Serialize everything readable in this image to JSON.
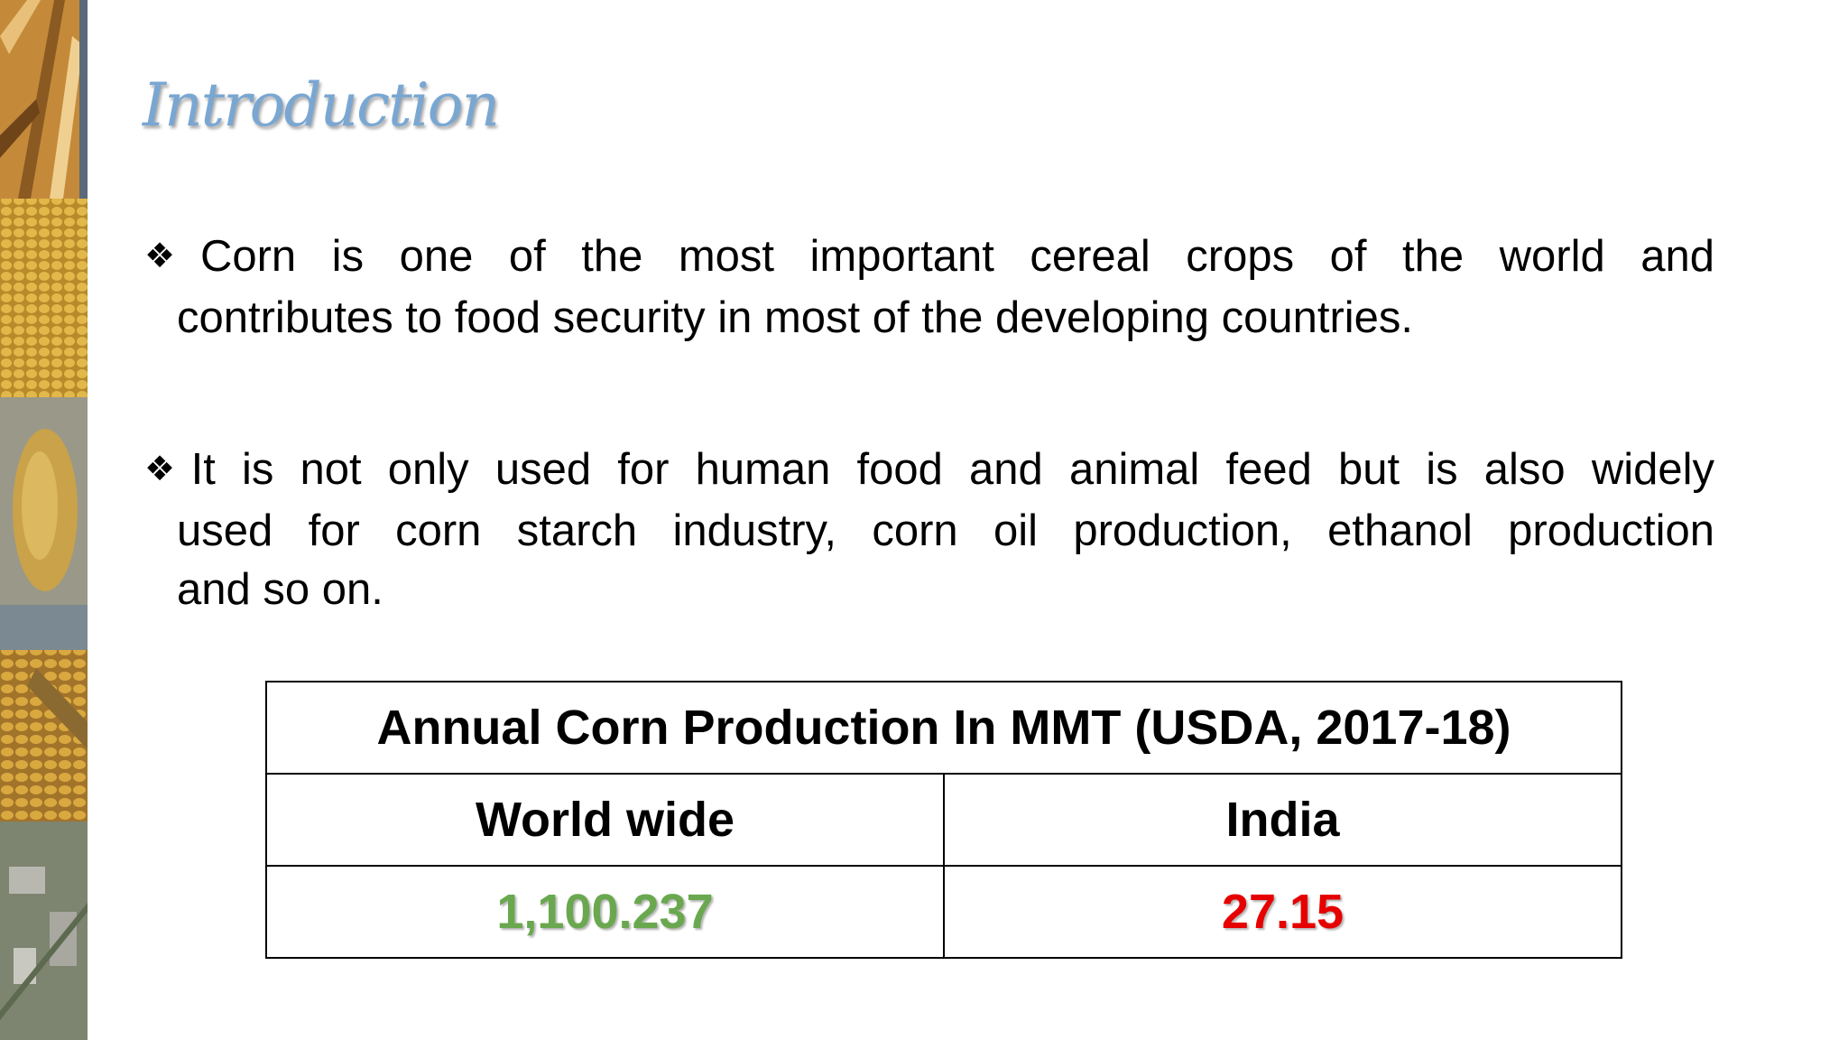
{
  "slide": {
    "title": "Introduction",
    "bullet_symbol": "❖",
    "bullets": [
      {
        "lines": [
          "Corn is one of the most important cereal crops of the world and",
          "contributes to food security in most of the developing countries."
        ]
      },
      {
        "lines": [
          "It is not only used for human food and animal feed but is also widely",
          "used for corn starch industry, corn oil production, ethanol production",
          "and so on."
        ]
      }
    ]
  },
  "table": {
    "caption": "Annual Corn Production In MMT (USDA, 2017-18)",
    "headers": [
      "World wide",
      "India"
    ],
    "values": [
      "1,100.237",
      "27.15"
    ]
  },
  "colors": {
    "title": "#7aa7d2",
    "world_value": "#6aa84f",
    "india_value": "#e60000"
  },
  "decor": {
    "left_strip_images": [
      "corn-plant-photo",
      "corn-kernels-photo",
      "single-kernel-photo",
      "corn-harvest-photo",
      "corn-factory-aerial-photo"
    ]
  }
}
